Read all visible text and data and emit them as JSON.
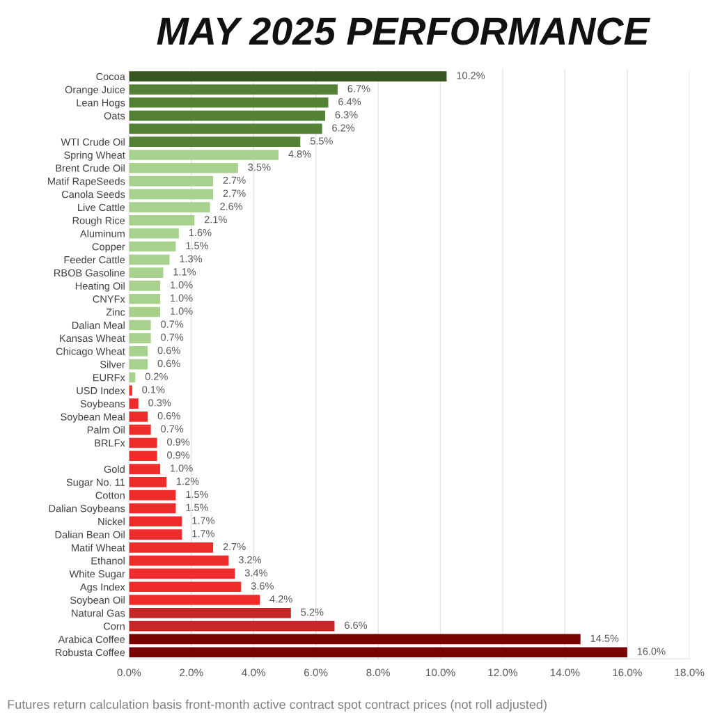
{
  "chart_data": {
    "type": "bar",
    "orientation": "horizontal",
    "title": "MAY 2025 PERFORMANCE",
    "categories": [
      "Cocoa",
      "Orange Juice",
      "Lean Hogs",
      "Oats",
      null,
      "WTI Crude Oil",
      "Spring Wheat",
      "Brent Crude Oil",
      "Matif RapeSeeds",
      "Canola Seeds",
      "Live Cattle",
      "Rough Rice",
      "Aluminum",
      "Copper",
      "Feeder Cattle",
      "RBOB Gasoline",
      "Heating Oil",
      "CNYFx",
      "Zinc",
      "Dalian Meal",
      "Kansas Wheat",
      "Chicago Wheat",
      "Silver",
      "EURFx",
      "USD Index",
      "Soybeans",
      "Soybean Meal",
      "Palm Oil",
      "BRLFx",
      null,
      "Gold",
      "Sugar No. 11",
      "Cotton",
      "Dalian Soybeans",
      "Nickel",
      "Dalian Bean Oil",
      "Matif Wheat",
      "Ethanol",
      "White Sugar",
      "Ags Index",
      "Soybean Oil",
      "Natural Gas",
      "Corn",
      "Arabica Coffee",
      "Robusta Coffee"
    ],
    "values": [
      10.2,
      6.7,
      6.4,
      6.3,
      6.2,
      5.5,
      4.8,
      3.5,
      2.7,
      2.7,
      2.6,
      2.1,
      1.6,
      1.5,
      1.3,
      1.1,
      1.0,
      1.0,
      1.0,
      0.7,
      0.7,
      0.6,
      0.6,
      0.2,
      0.1,
      0.3,
      0.6,
      0.7,
      0.9,
      0.9,
      1.0,
      1.2,
      1.5,
      1.5,
      1.7,
      1.7,
      2.7,
      3.2,
      3.4,
      3.6,
      4.2,
      5.2,
      6.6,
      14.5,
      16.0
    ],
    "value_labels": [
      "10.2%",
      "6.7%",
      "6.4%",
      "6.3%",
      "6.2%",
      "5.5%",
      "4.8%",
      "3.5%",
      "2.7%",
      "2.7%",
      "2.6%",
      "2.1%",
      "1.6%",
      "1.5%",
      "1.3%",
      "1.1%",
      "1.0%",
      "1.0%",
      "1.0%",
      "0.7%",
      "0.7%",
      "0.6%",
      "0.6%",
      "0.2%",
      "0.1%",
      "0.3%",
      "0.6%",
      "0.7%",
      "0.9%",
      "0.9%",
      "1.0%",
      "1.2%",
      "1.5%",
      "1.5%",
      "1.7%",
      "1.7%",
      "2.7%",
      "3.2%",
      "3.4%",
      "3.6%",
      "4.2%",
      "5.2%",
      "6.6%",
      "14.5%",
      "16.0%"
    ],
    "colors": [
      "#375623",
      "#548235",
      "#548235",
      "#548235",
      "#548235",
      "#548235",
      "#a9d18e",
      "#a9d18e",
      "#a9d18e",
      "#a9d18e",
      "#a9d18e",
      "#a9d18e",
      "#a9d18e",
      "#a9d18e",
      "#a9d18e",
      "#a9d18e",
      "#a9d18e",
      "#a9d18e",
      "#a9d18e",
      "#a9d18e",
      "#a9d18e",
      "#a9d18e",
      "#a9d18e",
      "#a9d18e",
      "#ee2c2c",
      "#ee2c2c",
      "#ee2c2c",
      "#ee2c2c",
      "#ee2c2c",
      "#ee2c2c",
      "#ee2c2c",
      "#ee2c2c",
      "#ee2c2c",
      "#ee2c2c",
      "#ee2c2c",
      "#ee2c2c",
      "#ee2c2c",
      "#ee2c2c",
      "#ee2c2c",
      "#ee2c2c",
      "#ee2c2c",
      "#c62828",
      "#c62828",
      "#7a0404",
      "#7a0404"
    ],
    "xlim": [
      0,
      18
    ],
    "xticks": [
      {
        "value": 0,
        "label": "0.0%"
      },
      {
        "value": 2,
        "label": "2.0%"
      },
      {
        "value": 4,
        "label": "4.0%"
      },
      {
        "value": 6,
        "label": "6.0%"
      },
      {
        "value": 8,
        "label": "8.0%"
      },
      {
        "value": 10,
        "label": "10.0%"
      },
      {
        "value": 12,
        "label": "12.0%"
      },
      {
        "value": 14,
        "label": "14.0%"
      },
      {
        "value": 16,
        "label": "16.0%"
      },
      {
        "value": 18,
        "label": "18.0%"
      }
    ],
    "grid": "x",
    "annotations": [
      "Futures return calculation basis front-month active contract spot contract prices (not roll adjusted)"
    ]
  }
}
